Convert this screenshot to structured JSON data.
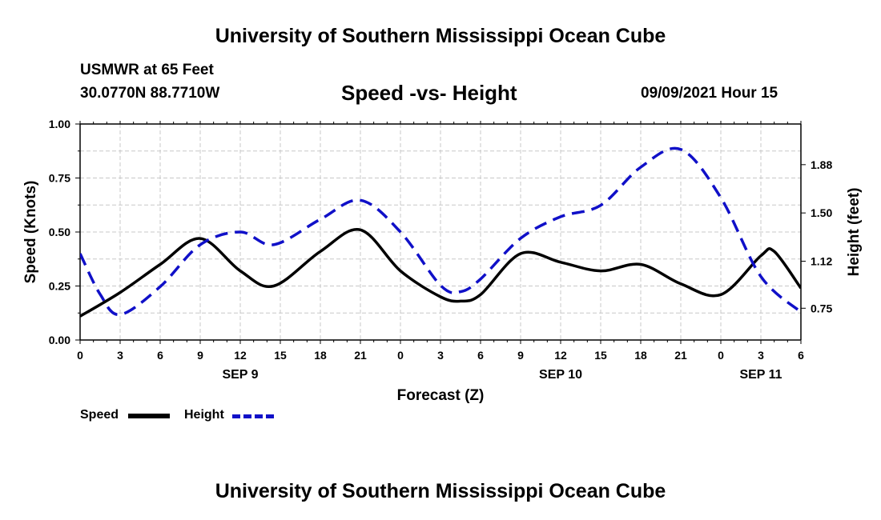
{
  "header": {
    "title": "University of Southern Mississippi Ocean Cube",
    "station": "USMWR at 65 Feet",
    "coords": "30.0770N  88.7710W",
    "subtitle": "Speed -vs- Height",
    "datetime": "09/09/2021 Hour 15"
  },
  "footer": {
    "title": "University of Southern Mississippi Ocean Cube"
  },
  "legend": {
    "speed_label": "Speed",
    "height_label": "Height"
  },
  "colors": {
    "speed": "#000000",
    "height": "#1010c8",
    "grid": "#c8c8c8"
  },
  "chart_data": {
    "type": "line",
    "xlabel": "Forecast (Z)",
    "ylabel_left": "Speed (Knots)",
    "ylabel_right": "Height (feet)",
    "x_range": [
      0,
      54
    ],
    "x_ticks": [
      0,
      3,
      6,
      9,
      12,
      15,
      18,
      21,
      24,
      27,
      30,
      33,
      36,
      39,
      42,
      45,
      48,
      51,
      54
    ],
    "x_tick_labels": [
      "0",
      "3",
      "6",
      "9",
      "12",
      "15",
      "18",
      "21",
      "0",
      "3",
      "6",
      "9",
      "12",
      "15",
      "18",
      "21",
      "0",
      "3",
      "6"
    ],
    "date_labels": [
      {
        "x": 12,
        "label": "SEP 9"
      },
      {
        "x": 36,
        "label": "SEP 10"
      },
      {
        "x": 51,
        "label": "SEP 11"
      }
    ],
    "ylim_left": [
      0,
      1.0
    ],
    "y_ticks_left": [
      0,
      0.25,
      0.5,
      0.75,
      1.0
    ],
    "y_tick_labels_left": [
      "0.00",
      "0.25",
      "0.50",
      "0.75",
      "1.00"
    ],
    "ylim_right": [
      0.5,
      2.2
    ],
    "y_ticks_right": [
      0.75,
      1.12,
      1.5,
      1.88
    ],
    "y_tick_labels_right": [
      "0.75",
      "1.12",
      "1.50",
      "1.88"
    ],
    "grid": true,
    "series": [
      {
        "name": "Speed",
        "axis": "left",
        "style": "solid",
        "x": [
          0,
          3,
          6,
          9,
          12,
          14.5,
          18,
          21,
          24,
          27,
          28.5,
          30,
          33,
          36,
          39,
          42,
          45,
          48,
          51,
          52,
          54
        ],
        "values": [
          0.11,
          0.22,
          0.35,
          0.47,
          0.32,
          0.25,
          0.41,
          0.51,
          0.32,
          0.2,
          0.18,
          0.21,
          0.4,
          0.36,
          0.32,
          0.35,
          0.26,
          0.21,
          0.39,
          0.41,
          0.24
        ]
      },
      {
        "name": "Height",
        "axis": "right",
        "style": "dashed",
        "x": [
          0,
          1.5,
          3,
          6,
          9,
          12,
          14.5,
          18,
          21,
          24,
          27,
          28.5,
          30,
          33,
          36,
          39,
          42,
          45,
          48,
          51,
          54
        ],
        "values": [
          1.18,
          0.86,
          0.7,
          0.92,
          1.25,
          1.35,
          1.25,
          1.45,
          1.6,
          1.35,
          0.93,
          0.88,
          0.98,
          1.3,
          1.47,
          1.56,
          1.86,
          2.0,
          1.62,
          1.0,
          0.72
        ]
      }
    ]
  }
}
